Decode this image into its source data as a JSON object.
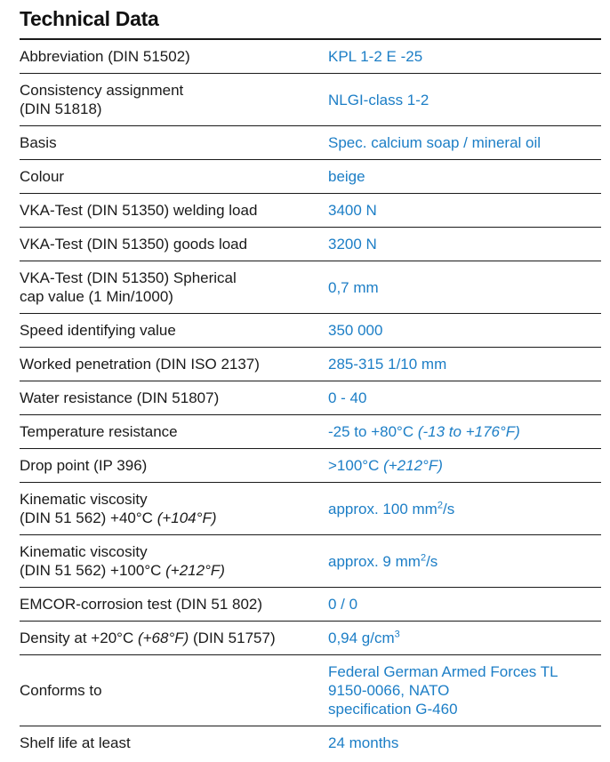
{
  "page": {
    "title": "Technical Data"
  },
  "colors": {
    "value_text": "#1c7ec6",
    "label_text": "#1a1a1a",
    "rule": "#1a1a1a",
    "background": "#ffffff"
  },
  "table": {
    "rows": [
      {
        "name": "abbreviation",
        "label": [
          [
            {
              "t": "Abbreviation (DIN 51502)"
            }
          ]
        ],
        "value": [
          [
            {
              "t": "KPL 1-2 E -25"
            }
          ]
        ]
      },
      {
        "name": "consistency-assignment",
        "label": [
          [
            {
              "t": "Consistency assignment"
            }
          ],
          [
            {
              "t": "(DIN 51818)"
            }
          ]
        ],
        "value": [
          [
            {
              "t": "NLGI-class 1-2"
            }
          ]
        ]
      },
      {
        "name": "basis",
        "label": [
          [
            {
              "t": "Basis"
            }
          ]
        ],
        "value": [
          [
            {
              "t": "Spec. calcium soap / mineral oil"
            }
          ]
        ]
      },
      {
        "name": "colour",
        "label": [
          [
            {
              "t": "Colour"
            }
          ]
        ],
        "value": [
          [
            {
              "t": "beige"
            }
          ]
        ]
      },
      {
        "name": "vka-welding-load",
        "label": [
          [
            {
              "t": "VKA-Test (DIN 51350) welding load"
            }
          ]
        ],
        "value": [
          [
            {
              "t": "3400 N"
            }
          ]
        ]
      },
      {
        "name": "vka-goods-load",
        "label": [
          [
            {
              "t": "VKA-Test (DIN 51350) goods load"
            }
          ]
        ],
        "value": [
          [
            {
              "t": "3200 N"
            }
          ]
        ]
      },
      {
        "name": "vka-spherical-cap",
        "label": [
          [
            {
              "t": "VKA-Test (DIN 51350) Spherical"
            }
          ],
          [
            {
              "t": "cap value (1 Min/1000)"
            }
          ]
        ],
        "value": [
          [
            {
              "t": "0,7 mm"
            }
          ]
        ]
      },
      {
        "name": "speed-identifying-value",
        "label": [
          [
            {
              "t": "Speed identifying value"
            }
          ]
        ],
        "value": [
          [
            {
              "t": "350 000"
            }
          ]
        ]
      },
      {
        "name": "worked-penetration",
        "label": [
          [
            {
              "t": "Worked penetration (DIN ISO 2137)"
            }
          ]
        ],
        "value": [
          [
            {
              "t": "285-315 1/10 mm"
            }
          ]
        ]
      },
      {
        "name": "water-resistance",
        "label": [
          [
            {
              "t": "Water resistance (DIN 51807)"
            }
          ]
        ],
        "value": [
          [
            {
              "t": "0 - 40"
            }
          ]
        ]
      },
      {
        "name": "temperature-resistance",
        "label": [
          [
            {
              "t": "Temperature resistance"
            }
          ]
        ],
        "value": [
          [
            {
              "t": "-25 to +80°C "
            },
            {
              "t": "(-13 to +176°F)",
              "i": true
            }
          ]
        ]
      },
      {
        "name": "drop-point",
        "label": [
          [
            {
              "t": "Drop point (IP 396)"
            }
          ]
        ],
        "value": [
          [
            {
              "t": ">100°C "
            },
            {
              "t": "(+212°F)",
              "i": true
            }
          ]
        ]
      },
      {
        "name": "kinematic-viscosity-40",
        "label": [
          [
            {
              "t": "Kinematic viscosity"
            }
          ],
          [
            {
              "t": "(DIN 51 562) +40°C "
            },
            {
              "t": "(+104°F)",
              "i": true
            }
          ]
        ],
        "value": [
          [
            {
              "t": "approx. 100 mm"
            },
            {
              "t": "2",
              "sup": true
            },
            {
              "t": "/s"
            }
          ]
        ]
      },
      {
        "name": "kinematic-viscosity-100",
        "label": [
          [
            {
              "t": "Kinematic viscosity"
            }
          ],
          [
            {
              "t": "(DIN 51 562) +100°C "
            },
            {
              "t": "(+212°F)",
              "i": true
            }
          ]
        ],
        "value": [
          [
            {
              "t": "approx. 9 mm"
            },
            {
              "t": "2",
              "sup": true
            },
            {
              "t": "/s"
            }
          ]
        ]
      },
      {
        "name": "emcor-corrosion-test",
        "label": [
          [
            {
              "t": "EMCOR-corrosion test (DIN 51 802)"
            }
          ]
        ],
        "value": [
          [
            {
              "t": "0 / 0"
            }
          ]
        ]
      },
      {
        "name": "density",
        "label": [
          [
            {
              "t": "Density at +20°C "
            },
            {
              "t": "(+68°F)",
              "i": true
            },
            {
              "t": " (DIN 51757)"
            }
          ]
        ],
        "value": [
          [
            {
              "t": "0,94 g/cm"
            },
            {
              "t": "3",
              "sup": true
            }
          ]
        ]
      },
      {
        "name": "conforms-to",
        "label": [
          [
            {
              "t": "Conforms to"
            }
          ]
        ],
        "value": [
          [
            {
              "t": "Federal German Armed Forces TL"
            }
          ],
          [
            {
              "t": "9150-0066, NATO"
            }
          ],
          [
            {
              "t": "specification G-460"
            }
          ]
        ]
      },
      {
        "name": "shelf-life",
        "label": [
          [
            {
              "t": "Shelf life at least"
            }
          ]
        ],
        "value": [
          [
            {
              "t": "24 months"
            }
          ]
        ]
      }
    ]
  }
}
